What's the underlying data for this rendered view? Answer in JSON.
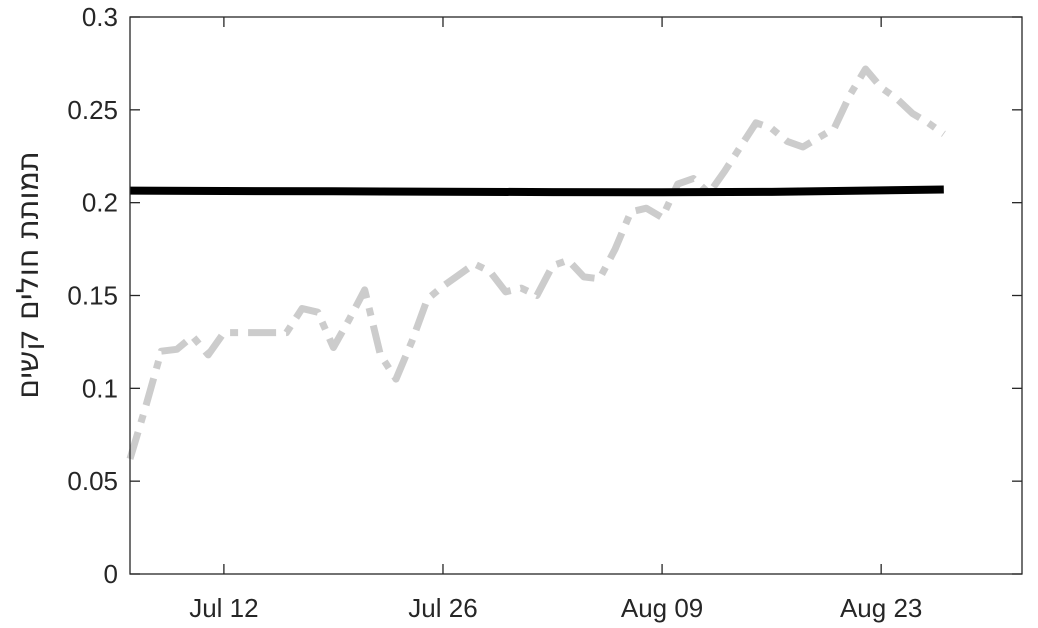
{
  "chart_data": {
    "type": "line",
    "title": "",
    "xlabel": "",
    "ylabel": "תמותת חולים  קשים",
    "x_axis": {
      "type": "date",
      "min": "2021-07-06",
      "max": "2021-09-01",
      "ticks": [
        "2021-07-12",
        "2021-07-26",
        "2021-08-09",
        "2021-08-23"
      ],
      "tick_labels": [
        "Jul 12",
        "Jul 26",
        "Aug 09",
        "Aug 23"
      ]
    },
    "y_axis": {
      "min": 0,
      "max": 0.3,
      "ticks": [
        0,
        0.05,
        0.1,
        0.15,
        0.2,
        0.25,
        0.3
      ],
      "tick_labels": [
        "0",
        "0.05",
        "0.1",
        "0.15",
        "0.2",
        "0.25",
        "0.3"
      ]
    },
    "grid": false,
    "series": [
      {
        "color": "#cccccc",
        "style": "dash-dot",
        "x": [
          "2021-07-06",
          "2021-07-07",
          "2021-07-08",
          "2021-07-09",
          "2021-07-10",
          "2021-07-11",
          "2021-07-12",
          "2021-07-13",
          "2021-07-14",
          "2021-07-15",
          "2021-07-16",
          "2021-07-17",
          "2021-07-18",
          "2021-07-19",
          "2021-07-20",
          "2021-07-21",
          "2021-07-22",
          "2021-07-23",
          "2021-07-24",
          "2021-07-25",
          "2021-07-26",
          "2021-07-27",
          "2021-07-28",
          "2021-07-29",
          "2021-07-30",
          "2021-07-31",
          "2021-08-01",
          "2021-08-02",
          "2021-08-03",
          "2021-08-04",
          "2021-08-05",
          "2021-08-06",
          "2021-08-07",
          "2021-08-08",
          "2021-08-09",
          "2021-08-10",
          "2021-08-11",
          "2021-08-12",
          "2021-08-13",
          "2021-08-14",
          "2021-08-15",
          "2021-08-16",
          "2021-08-17",
          "2021-08-18",
          "2021-08-19",
          "2021-08-20",
          "2021-08-21",
          "2021-08-22",
          "2021-08-23",
          "2021-08-24",
          "2021-08-25",
          "2021-08-26",
          "2021-08-27"
        ],
        "y": [
          0.062,
          0.09,
          0.12,
          0.121,
          0.128,
          0.118,
          0.13,
          0.13,
          0.13,
          0.13,
          0.13,
          0.143,
          0.141,
          0.122,
          0.137,
          0.153,
          0.118,
          0.105,
          0.125,
          0.148,
          0.155,
          0.161,
          0.167,
          0.163,
          0.152,
          0.154,
          0.15,
          0.166,
          0.169,
          0.16,
          0.159,
          0.175,
          0.195,
          0.197,
          0.192,
          0.21,
          0.213,
          0.205,
          0.217,
          0.23,
          0.243,
          0.24,
          0.233,
          0.23,
          0.235,
          0.24,
          0.258,
          0.272,
          0.262,
          0.256,
          0.248,
          0.243,
          0.237
        ]
      },
      {
        "color": "#000000",
        "style": "solid",
        "x": [
          "2021-07-06",
          "2021-07-12",
          "2021-07-19",
          "2021-07-26",
          "2021-08-02",
          "2021-08-09",
          "2021-08-16",
          "2021-08-23",
          "2021-08-27"
        ],
        "y": [
          0.2065,
          0.2063,
          0.2061,
          0.2059,
          0.2057,
          0.2056,
          0.2058,
          0.2066,
          0.2071
        ]
      }
    ]
  }
}
